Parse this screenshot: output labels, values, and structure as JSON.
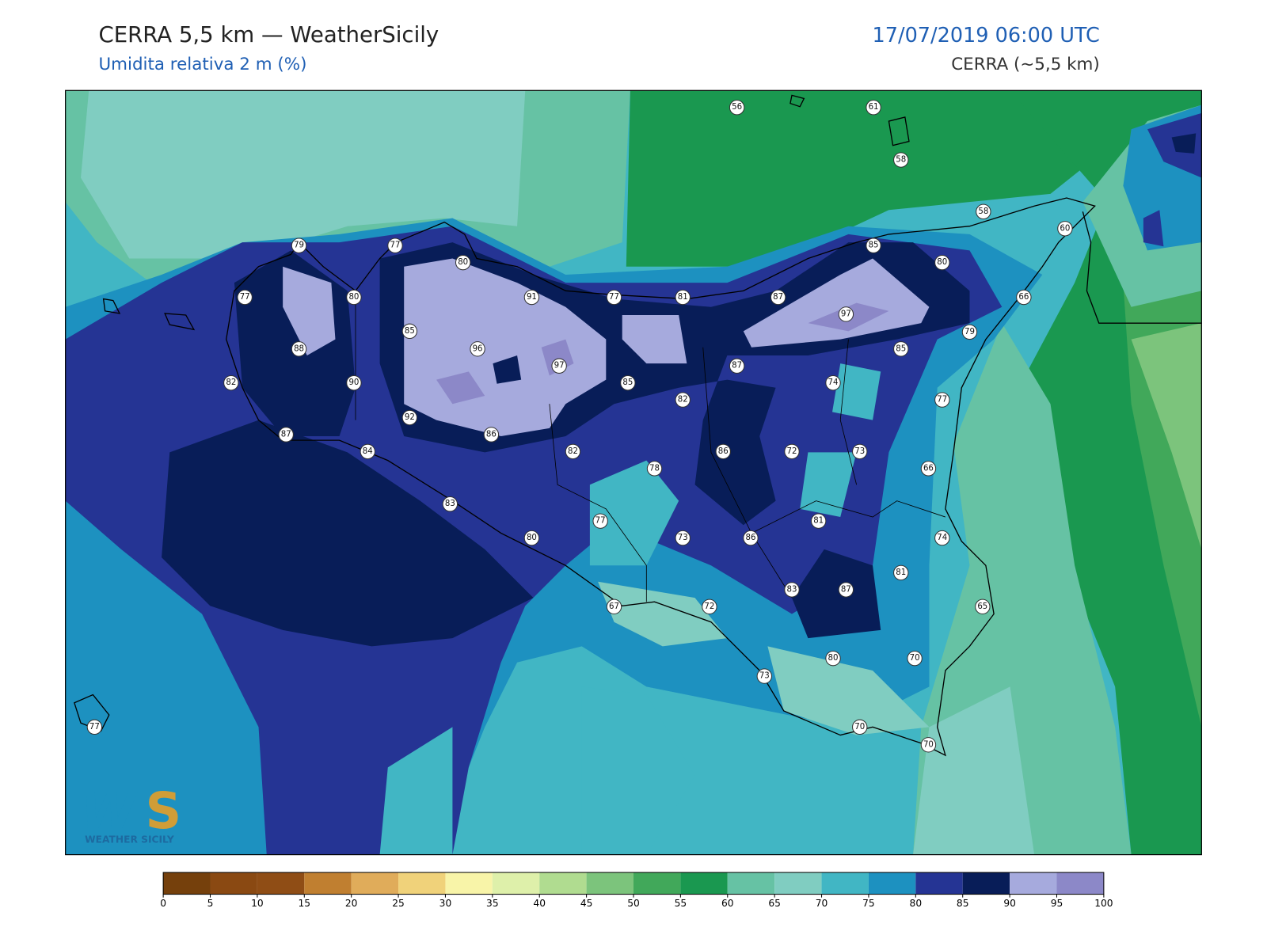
{
  "header": {
    "title": "CERRA 5,5 km — WeatherSicily",
    "subtitle": "Umidita relativa 2 m (%)",
    "date": "17/07/2019 06:00 UTC",
    "model": "CERRA (~5,5 km)"
  },
  "logo": {
    "text": "WEATHER SICILY"
  },
  "stations": [
    {
      "value": 56
    },
    {
      "value": 61
    },
    {
      "value": 58
    },
    {
      "value": 58
    },
    {
      "value": 60
    },
    {
      "value": 79
    },
    {
      "value": 77
    },
    {
      "value": 80
    },
    {
      "value": 85
    },
    {
      "value": 80
    },
    {
      "value": 77
    },
    {
      "value": 80
    },
    {
      "value": 91
    },
    {
      "value": 77
    },
    {
      "value": 81
    },
    {
      "value": 87
    },
    {
      "value": 66
    },
    {
      "value": 97
    },
    {
      "value": 85
    },
    {
      "value": 79
    },
    {
      "value": 88
    },
    {
      "value": 96
    },
    {
      "value": 85
    },
    {
      "value": 97
    },
    {
      "value": 87
    },
    {
      "value": 82
    },
    {
      "value": 90
    },
    {
      "value": 85
    },
    {
      "value": 74
    },
    {
      "value": 82
    },
    {
      "value": 77
    },
    {
      "value": 92
    },
    {
      "value": 87
    },
    {
      "value": 86
    },
    {
      "value": 84
    },
    {
      "value": 82
    },
    {
      "value": 86
    },
    {
      "value": 72
    },
    {
      "value": 73
    },
    {
      "value": 78
    },
    {
      "value": 66
    },
    {
      "value": 83
    },
    {
      "value": 77
    },
    {
      "value": 81
    },
    {
      "value": 80
    },
    {
      "value": 73
    },
    {
      "value": 86
    },
    {
      "value": 74
    },
    {
      "value": 81
    },
    {
      "value": 83
    },
    {
      "value": 87
    },
    {
      "value": 67
    },
    {
      "value": 72
    },
    {
      "value": 65
    },
    {
      "value": 80
    },
    {
      "value": 70
    },
    {
      "value": 73
    },
    {
      "value": 77
    },
    {
      "value": 70
    },
    {
      "value": 70
    }
  ],
  "colorbar": {
    "ticks": [
      0,
      5,
      10,
      15,
      20,
      25,
      30,
      35,
      40,
      45,
      50,
      55,
      60,
      65,
      70,
      75,
      80,
      85,
      90,
      95,
      100
    ],
    "colors": [
      "#75400c",
      "#8a4912",
      "#8f4d15",
      "#c07f30",
      "#e0ac5a",
      "#f0d27a",
      "#f8f4a8",
      "#def0aa",
      "#b0dc90",
      "#7cc47c",
      "#41a85a",
      "#1a9850",
      "#66c2a4",
      "#80cdc1",
      "#41b6c4",
      "#1d91c0",
      "#253494",
      "#081d58",
      "#a6aadd",
      "#8c88c8"
    ]
  }
}
